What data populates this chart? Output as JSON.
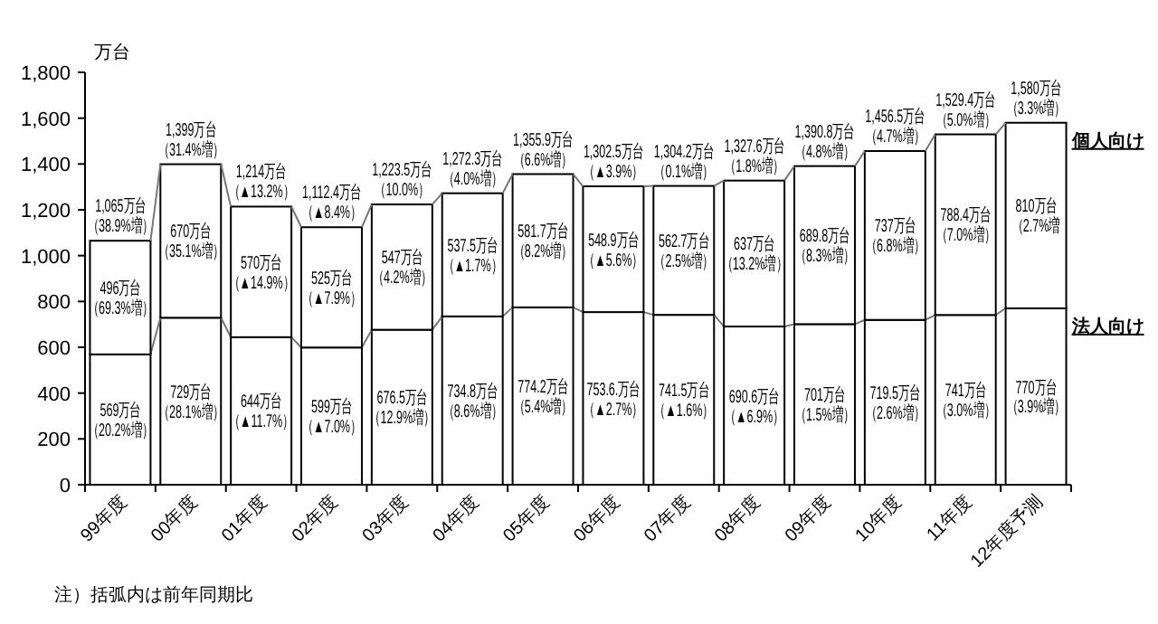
{
  "chart_data": {
    "type": "bar",
    "stacked": true,
    "ylabel": "万台",
    "categories": [
      "99年度",
      "00年度",
      "01年度",
      "02年度",
      "03年度",
      "04年度",
      "05年度",
      "06年度",
      "07年度",
      "08年度",
      "09年度",
      "10年度",
      "11年度",
      "12年度予測"
    ],
    "series": [
      {
        "name": "法人向け",
        "color": "#ffffff",
        "values": [
          569,
          729,
          644,
          599,
          676.5,
          734.8,
          774.2,
          753.6,
          741.5,
          690.6,
          701,
          719.5,
          741,
          770
        ],
        "value_labels": [
          "569万台（20.2%増）",
          "729万台（28.1%増）",
          "644万台（▲11.7%）",
          "599万台（▲7.0%）",
          "676.5万台（12.9%増）",
          "734.8万台（8.6%増）",
          "774.2万台（5.4%増）",
          "753.6.万台（▲2.7%）",
          "741.5万台（▲1.6%）",
          "690.6万台（▲6.9%）",
          "701万台（1.5%増）",
          "719.5万台（2.6%増）",
          "741万台（3.0%増）",
          "770万台（3.9%増）"
        ]
      },
      {
        "name": "個人向け",
        "color": "#ffffff",
        "values": [
          496,
          670,
          570,
          525,
          547,
          537.5,
          581.7,
          548.9,
          562.7,
          637,
          689.8,
          737,
          788.4,
          810
        ],
        "value_labels": [
          "496万台（69.3%増）",
          "670万台（35.1%増）",
          "570万台（▲14.9%）",
          "525万台（▲7.9%）",
          "547万台（4.2%増）",
          "537.5万台（▲1.7%）",
          "581.7万台（8.2%増）",
          "548.9万台（▲5.6%）",
          "562.7万台（2.5%増）",
          "637万台（13.2%増）",
          "689.8万台（8.3%増）",
          "737万台（6.8%増）",
          "788.4万台（7.0%増）",
          "810万台（2.7%増"
        ]
      }
    ],
    "totals": [
      "1,065万台（38.9%増）",
      "1,399万台（31.4%増）",
      "1,214万台（▲13.2%）",
      "1,112.4万台（▲8.4%）",
      "1,223.5万台（10.0%）",
      "1,272.3万台（4.0%増）",
      "1,355.9万台（6.6%増）",
      "1,302.5万台（▲3.9%）",
      "1,304.2万台（0.1%増）",
      "1,327.6万台（1.8%増）",
      "1,390.8万台（4.8%増）",
      "1,456.5万台（4.7%増）",
      "1,529.4万台（5.0%増）",
      "1,580万台（3.3%増）"
    ],
    "ylim": [
      0,
      1800
    ],
    "yticks": [
      0,
      200,
      400,
      600,
      800,
      {
        "value": 1000,
        "label": "1,000"
      },
      {
        "value": 1200,
        "label": "1,200"
      },
      {
        "value": 1400,
        "label": "1,400"
      },
      {
        "value": 1600,
        "label": "1,600"
      },
      {
        "value": 1800,
        "label": "1,800"
      }
    ],
    "annotations": [
      "注）括弧内は前年同期比"
    ]
  }
}
